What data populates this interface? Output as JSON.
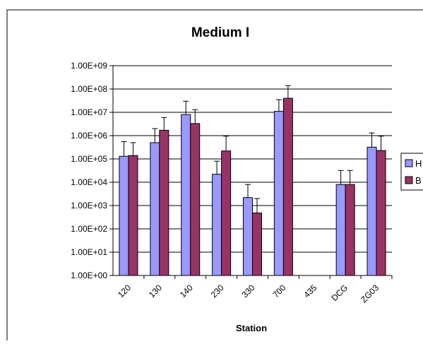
{
  "chart_data": {
    "type": "bar",
    "title": "Medium I",
    "xlabel": "Station",
    "ylabel": "",
    "yscale": "log",
    "ylim": [
      1,
      1000000000
    ],
    "yticks": [
      "1.00E+00",
      "1.00E+01",
      "1.00E+02",
      "1.00E+03",
      "1.00E+04",
      "1.00E+05",
      "1.00E+06",
      "1.00E+07",
      "1.00E+08",
      "1.00E+09"
    ],
    "categories": [
      "120",
      "130",
      "140",
      "230",
      "330",
      "700",
      "435",
      "DCG",
      "ZG03"
    ],
    "grid": true,
    "legend_position": "right",
    "series": [
      {
        "name": "H",
        "color": "#9999ff",
        "values": [
          130000,
          500000,
          8000000,
          22000,
          2200,
          11000000,
          null,
          8000,
          320000
        ],
        "error_upper": [
          550000,
          2000000,
          30000000,
          80000,
          8000,
          35000000,
          null,
          32000,
          1300000
        ]
      },
      {
        "name": "B",
        "color": "#993366",
        "values": [
          140000,
          1700000,
          3300000,
          220000,
          480,
          40000000,
          null,
          8000,
          230000
        ],
        "error_upper": [
          500000,
          6000000,
          13000000,
          950000,
          2000,
          140000000,
          null,
          32000,
          950000
        ]
      }
    ]
  }
}
